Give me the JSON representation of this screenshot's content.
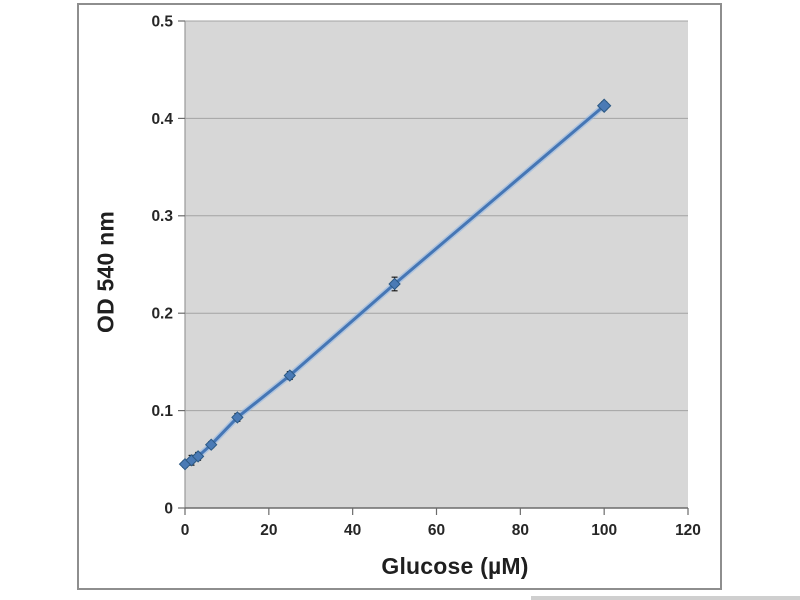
{
  "colors": {
    "plot_bg": "#d7d7d7",
    "grid": "#a3a3a3",
    "y_axis": "#9a9a9a",
    "x_axis": "#6b6b6b",
    "tick": "#6b6b6b",
    "line": "#4576b5",
    "line_halo": "#8eb4e3",
    "marker_fill": "#4a7ab5",
    "marker_edge": "#2c5984",
    "error_bar": "#1f1f1f",
    "tick_text": "#262626",
    "panel_border": "#8e8e8e"
  },
  "chart_data": {
    "type": "scatter",
    "title": "",
    "xlabel": "Glucose (µM)",
    "ylabel": "OD 540 nm",
    "x": [
      0,
      1.5625,
      3.125,
      6.25,
      12.5,
      25,
      50,
      100
    ],
    "y": [
      0.045,
      0.049,
      0.053,
      0.065,
      0.093,
      0.136,
      0.23,
      0.413
    ],
    "y_err": [
      0.003,
      0.005,
      0.004,
      0.003,
      0.004,
      0.004,
      0.007,
      0.004
    ],
    "xlim": [
      0,
      120
    ],
    "ylim": [
      0,
      0.5
    ],
    "x_ticks": [
      0,
      20,
      40,
      60,
      80,
      100,
      120
    ],
    "x_tick_labels": [
      "0",
      "20",
      "40",
      "60",
      "80",
      "100",
      "120"
    ],
    "y_ticks": [
      0,
      0.1,
      0.2,
      0.3,
      0.4,
      0.5
    ],
    "y_tick_labels": [
      "0",
      "0.1",
      "0.2",
      "0.3",
      "0.4",
      "0.5"
    ],
    "grid": "horizontal",
    "legend": "none",
    "marker": "diamond",
    "line_style": "straight"
  }
}
